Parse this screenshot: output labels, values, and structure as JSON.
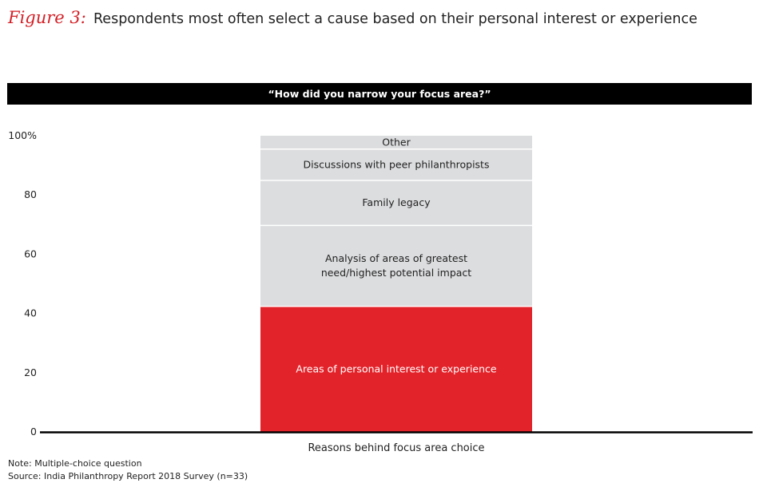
{
  "figure_label": "Figure 3:",
  "title": "Respondents most often select a cause based on their personal interest or experience",
  "question": "“How did you narrow your focus area?”",
  "note": "Note: Multiple-choice question",
  "source": "Source: India Philanthropy Report 2018 Survey (n=33)",
  "colors": {
    "accent": "#e3232a",
    "segment": "#dcdddf",
    "divider": "#ffffff",
    "axis": "#000000"
  },
  "chart_data": {
    "type": "bar",
    "stacked": true,
    "categories": [
      "Reasons behind focus area choice"
    ],
    "ylim": [
      0,
      100
    ],
    "y_ticks": [
      0,
      20,
      40,
      60,
      80,
      100
    ],
    "y_tick_labels": [
      "0",
      "20",
      "40",
      "60",
      "80",
      "100%"
    ],
    "series": [
      {
        "name": "Areas of personal interest or experience",
        "values": [
          42.4
        ],
        "color": "#e3232a",
        "label_color": "#ffffff"
      },
      {
        "name": "Analysis of areas of greatest need/highest potential impact",
        "values": [
          27.3
        ],
        "color": "#dcdddf",
        "label_color": "#222222"
      },
      {
        "name": "Family legacy",
        "values": [
          15.2
        ],
        "color": "#dcdddf",
        "label_color": "#222222"
      },
      {
        "name": "Discussions with peer philanthropists",
        "values": [
          10.6
        ],
        "color": "#dcdddf",
        "label_color": "#222222"
      },
      {
        "name": "Other",
        "values": [
          4.5
        ],
        "color": "#dcdddf",
        "label_color": "#222222"
      }
    ],
    "legend": "inline labels"
  }
}
